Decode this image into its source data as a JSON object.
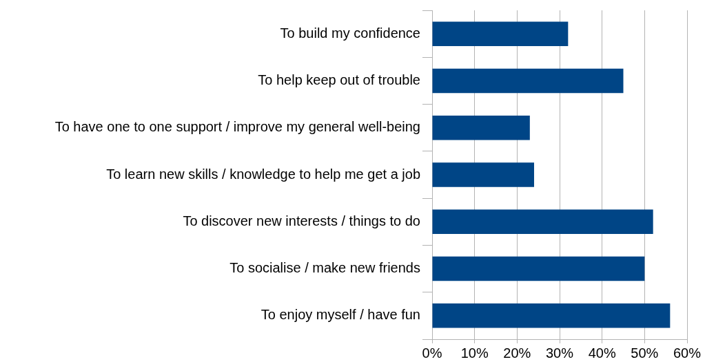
{
  "chart_data": {
    "type": "bar",
    "orientation": "horizontal",
    "categories": [
      "To build my confidence",
      "To help keep out of trouble",
      "To have one to one support / improve my general well-being",
      "To learn new skills / knowledge to help me get a job",
      "To discover new interests / things to do",
      "To socialise / make new friends",
      "To enjoy myself / have fun"
    ],
    "values": [
      32,
      45,
      23,
      24,
      52,
      50,
      56
    ],
    "color": "#004586",
    "xlim": [
      0,
      60
    ],
    "xticks": [
      {
        "value": 0,
        "label": "0%"
      },
      {
        "value": 10,
        "label": "10%"
      },
      {
        "value": 20,
        "label": "20%"
      },
      {
        "value": 30,
        "label": "30%"
      },
      {
        "value": 40,
        "label": "40%"
      },
      {
        "value": 50,
        "label": "50%"
      },
      {
        "value": 60,
        "label": "60%"
      }
    ],
    "grid": "x",
    "legend": false
  }
}
